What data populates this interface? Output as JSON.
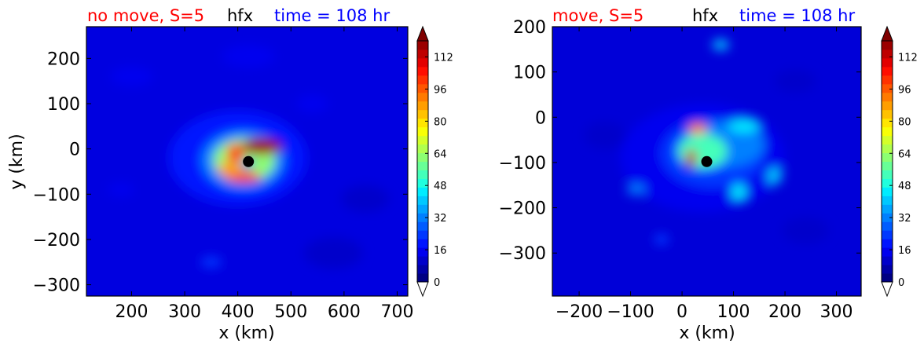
{
  "colors": {
    "title_left": "#ff0000",
    "title_center": "#000000",
    "title_right": "#0000ff",
    "marker": "#000000"
  },
  "chart_data": [
    {
      "type": "heatmap",
      "title_left": "no move, S=5",
      "title_center": "hfx",
      "title_right": "time = 108 hr",
      "xlabel": "x (km)",
      "ylabel": "y (km)",
      "xlim": [
        115,
        720
      ],
      "ylim": [
        -325,
        270
      ],
      "xticks": [
        200,
        300,
        400,
        500,
        600,
        700
      ],
      "yticks": [
        200,
        100,
        0,
        -100,
        -200,
        -300
      ],
      "xtick_labels": [
        "200",
        "300",
        "400",
        "500",
        "600",
        "700"
      ],
      "ytick_labels": [
        "200",
        "100",
        "0",
        "−100",
        "−200",
        "−300"
      ],
      "center_marker": [
        420,
        -28
      ],
      "features": [
        {
          "x": 400,
          "y": -20,
          "rx": 130,
          "ry": 105,
          "value": 18
        },
        {
          "x": 410,
          "y": -25,
          "rx": 78,
          "ry": 65,
          "value": 34
        },
        {
          "x": 412,
          "y": -25,
          "rx": 58,
          "ry": 48,
          "value": 60
        },
        {
          "x": 445,
          "y": 5,
          "rx": 38,
          "ry": 18,
          "value": 118
        },
        {
          "x": 395,
          "y": -10,
          "rx": 16,
          "ry": 22,
          "value": 100
        },
        {
          "x": 410,
          "y": -62,
          "rx": 34,
          "ry": 12,
          "value": 104
        },
        {
          "x": 385,
          "y": -45,
          "rx": 22,
          "ry": 16,
          "value": 88
        },
        {
          "x": 418,
          "y": -35,
          "rx": 12,
          "ry": 10,
          "value": 28
        },
        {
          "x": 200,
          "y": 160,
          "rx": 40,
          "ry": 22,
          "value": 15
        },
        {
          "x": 420,
          "y": 205,
          "rx": 50,
          "ry": 25,
          "value": 14
        },
        {
          "x": 540,
          "y": 100,
          "rx": 30,
          "ry": 20,
          "value": 16
        },
        {
          "x": 350,
          "y": -250,
          "rx": 20,
          "ry": 12,
          "value": 22
        },
        {
          "x": 640,
          "y": -110,
          "rx": 45,
          "ry": 30,
          "value": 12
        },
        {
          "x": 580,
          "y": -230,
          "rx": 55,
          "ry": 35,
          "value": 10
        },
        {
          "x": 180,
          "y": -90,
          "rx": 25,
          "ry": 15,
          "value": 14
        }
      ]
    },
    {
      "type": "heatmap",
      "title_left": "move, S=5",
      "title_center": "hfx",
      "title_right": "time = 108 hr",
      "xlabel": "x (km)",
      "ylabel": "",
      "xlim": [
        -252,
        348
      ],
      "ylim": [
        -395,
        200
      ],
      "xticks": [
        -200,
        -100,
        0,
        100,
        200,
        300
      ],
      "yticks": [
        200,
        100,
        0,
        -100,
        -200,
        -300
      ],
      "xtick_labels": [
        "−200",
        "−100",
        "0",
        "100",
        "200",
        "300"
      ],
      "ytick_labels": [
        "200",
        "100",
        "0",
        "−100",
        "−200",
        "−300"
      ],
      "center_marker": [
        48,
        -98
      ],
      "features": [
        {
          "x": 40,
          "y": -90,
          "rx": 160,
          "ry": 120,
          "value": 14
        },
        {
          "x": 60,
          "y": -80,
          "rx": 100,
          "ry": 75,
          "value": 22
        },
        {
          "x": 80,
          "y": -60,
          "rx": 80,
          "ry": 50,
          "value": 34
        },
        {
          "x": 40,
          "y": -75,
          "rx": 48,
          "ry": 38,
          "value": 52
        },
        {
          "x": 30,
          "y": -25,
          "rx": 18,
          "ry": 12,
          "value": 90
        },
        {
          "x": 18,
          "y": -90,
          "rx": 10,
          "ry": 20,
          "value": 112
        },
        {
          "x": 120,
          "y": -20,
          "rx": 30,
          "ry": 14,
          "value": 45
        },
        {
          "x": 110,
          "y": -165,
          "rx": 14,
          "ry": 18,
          "value": 46
        },
        {
          "x": 180,
          "y": -130,
          "rx": 14,
          "ry": 18,
          "value": 40
        },
        {
          "x": 75,
          "y": 160,
          "rx": 16,
          "ry": 12,
          "value": 40
        },
        {
          "x": -90,
          "y": -160,
          "rx": 18,
          "ry": 12,
          "value": 32
        },
        {
          "x": -40,
          "y": -270,
          "rx": 14,
          "ry": 12,
          "value": 24
        },
        {
          "x": 220,
          "y": 80,
          "rx": 40,
          "ry": 25,
          "value": 12
        },
        {
          "x": -150,
          "y": -40,
          "rx": 40,
          "ry": 30,
          "value": 12
        },
        {
          "x": 240,
          "y": -250,
          "rx": 45,
          "ry": 30,
          "value": 11
        }
      ]
    }
  ],
  "colorbar": {
    "vmin": 0,
    "vmax": 120,
    "ticks": [
      0,
      16,
      32,
      48,
      64,
      80,
      96,
      112
    ],
    "tick_labels": [
      "0",
      "16",
      "32",
      "48",
      "64",
      "80",
      "96",
      "112"
    ],
    "extend": "both",
    "colors": [
      "#000083",
      "#0000a7",
      "#0000cb",
      "#0000ef",
      "#0014ff",
      "#0038ff",
      "#005cff",
      "#0080ff",
      "#00a4ff",
      "#00c8ff",
      "#00ecff",
      "#20ffde",
      "#44ffba",
      "#68ff96",
      "#8cff72",
      "#b0ff4e",
      "#d4ff2a",
      "#f8ff06",
      "#ffe600",
      "#ffc200",
      "#ff9e00",
      "#ff7a00",
      "#ff5600",
      "#ff3200",
      "#ff0e00",
      "#e30000",
      "#bf0000",
      "#9b0000"
    ],
    "over_color": "#800000",
    "under_color": "#ffffff"
  }
}
